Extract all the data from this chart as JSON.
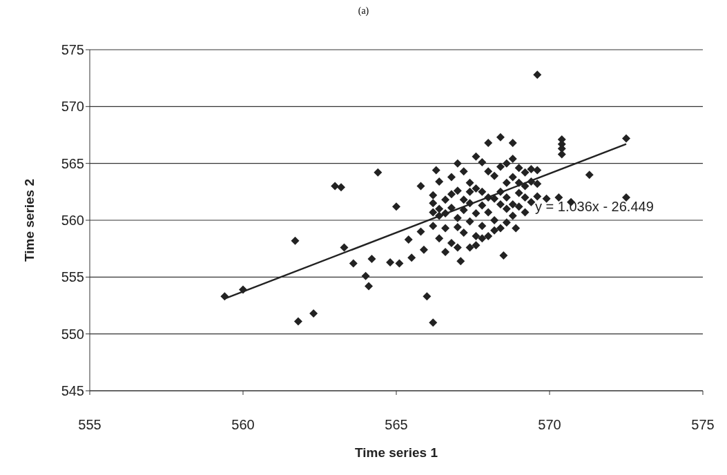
{
  "chart_data": {
    "type": "scatter",
    "title": "(a)",
    "xlabel": "Time series 1",
    "ylabel": "Time series 2",
    "xlim": [
      555,
      575
    ],
    "xticks": [
      555,
      560,
      565,
      570,
      575
    ],
    "ylim": [
      545,
      575
    ],
    "yticks": [
      545,
      550,
      555,
      560,
      565,
      570,
      575
    ],
    "grid": "y",
    "legend": false,
    "annotations": [
      "y = 1.036x - 26.449"
    ],
    "series": [
      {
        "type": "scatter",
        "color": "#222222",
        "marker": "diamond",
        "x": [
          559.4,
          560.0,
          561.7,
          561.8,
          562.3,
          563.0,
          563.2,
          563.3,
          563.6,
          564.0,
          564.1,
          564.2,
          564.4,
          564.8,
          565.0,
          565.1,
          565.4,
          565.5,
          565.8,
          565.8,
          565.9,
          566.0,
          566.2,
          566.3,
          569.6,
          570.4,
          570.4,
          570.4,
          570.4,
          571.3,
          572.5,
          572.5,
          570.7,
          570.3,
          569.9,
          568.5,
          567.1,
          566.2,
          566.2,
          566.2,
          566.2,
          566.4,
          566.4,
          566.4,
          566.4,
          566.6,
          566.6,
          566.6,
          566.6,
          566.8,
          566.8,
          566.8,
          566.8,
          567.0,
          567.0,
          567.0,
          567.0,
          567.0,
          567.2,
          567.2,
          567.2,
          567.2,
          567.4,
          567.4,
          567.4,
          567.4,
          567.4,
          567.6,
          567.6,
          567.6,
          567.6,
          567.6,
          567.8,
          567.8,
          567.8,
          567.8,
          567.8,
          568.0,
          568.0,
          568.0,
          568.0,
          568.0,
          568.2,
          568.2,
          568.2,
          568.2,
          568.4,
          568.4,
          568.4,
          568.4,
          568.4,
          568.6,
          568.6,
          568.6,
          568.6,
          568.6,
          568.8,
          568.8,
          568.8,
          568.8,
          568.8,
          569.0,
          569.0,
          569.0,
          569.0,
          569.2,
          569.2,
          569.2,
          569.2,
          569.4,
          569.4,
          569.4,
          569.6,
          569.6,
          569.6,
          568.9
        ],
        "values": [
          553.3,
          553.9,
          558.2,
          551.1,
          551.8,
          563.0,
          562.9,
          557.6,
          556.2,
          555.1,
          554.2,
          556.6,
          564.2,
          556.3,
          561.2,
          556.2,
          558.3,
          556.7,
          559.0,
          563.0,
          557.4,
          553.3,
          551.0,
          564.4,
          572.8,
          567.1,
          566.7,
          566.3,
          565.8,
          564.0,
          567.2,
          562.0,
          561.6,
          562.0,
          561.9,
          556.9,
          556.4,
          560.7,
          561.5,
          562.2,
          559.5,
          561.0,
          558.4,
          563.4,
          560.4,
          561.8,
          560.6,
          559.3,
          557.2,
          562.3,
          563.8,
          561.1,
          558.0,
          565.0,
          562.6,
          560.2,
          559.4,
          557.6,
          564.3,
          561.8,
          560.9,
          558.9,
          563.3,
          562.5,
          561.5,
          559.9,
          557.6,
          565.6,
          562.8,
          560.6,
          558.6,
          557.8,
          565.1,
          562.5,
          561.3,
          559.5,
          558.4,
          566.8,
          564.3,
          562.0,
          560.7,
          558.6,
          563.9,
          561.9,
          560.0,
          559.1,
          567.3,
          564.7,
          562.5,
          561.4,
          559.3,
          565.0,
          563.3,
          562.0,
          561.0,
          559.8,
          566.8,
          565.4,
          563.8,
          561.4,
          560.4,
          564.6,
          563.3,
          562.4,
          561.2,
          564.2,
          563.0,
          562.0,
          560.7,
          564.5,
          563.4,
          561.6,
          564.4,
          563.2,
          562.1,
          559.3
        ]
      },
      {
        "type": "line",
        "color": "#222222",
        "marker": "none",
        "line_style": "solid",
        "x": [
          559.4,
          572.5
        ],
        "values": [
          553.1,
          566.7
        ]
      }
    ]
  }
}
